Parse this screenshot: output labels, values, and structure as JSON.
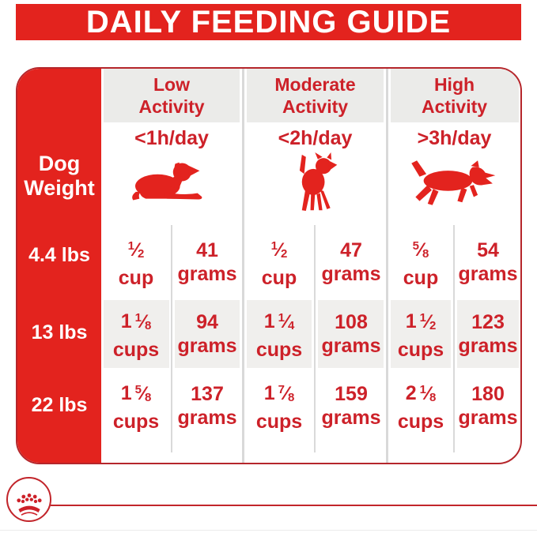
{
  "title": "DAILY FEEDING GUIDE",
  "colors": {
    "brand_red": "#e3231e",
    "text_red": "#cd2129",
    "border_red": "#b5262b",
    "line_red": "#c2252b",
    "header_gray": "#ebebe9",
    "row_gray": "#f0efed",
    "divider_gray": "#d9d9d9"
  },
  "table": {
    "corner_label_line1": "Dog",
    "corner_label_line2": "Weight",
    "columns": [
      {
        "label_line1": "Low",
        "label_line2": "Activity",
        "duration": "<1h/day",
        "icon": "dog-lying-icon"
      },
      {
        "label_line1": "Moderate",
        "label_line2": "Activity",
        "duration": "<2h/day",
        "icon": "dog-standing-icon"
      },
      {
        "label_line1": "High",
        "label_line2": "Activity",
        "duration": ">3h/day",
        "icon": "dog-running-icon"
      }
    ],
    "rows": [
      {
        "weight": "4.4 lbs",
        "cells": [
          {
            "whole": "",
            "num": "1",
            "den": "2",
            "unit": "cup",
            "grams": "41",
            "grams_unit": "grams"
          },
          {
            "whole": "",
            "num": "1",
            "den": "2",
            "unit": "cup",
            "grams": "47",
            "grams_unit": "grams"
          },
          {
            "whole": "",
            "num": "5",
            "den": "8",
            "unit": "cup",
            "grams": "54",
            "grams_unit": "grams"
          }
        ]
      },
      {
        "weight": "13 lbs",
        "cells": [
          {
            "whole": "1",
            "num": "1",
            "den": "8",
            "unit": "cups",
            "grams": "94",
            "grams_unit": "grams"
          },
          {
            "whole": "1",
            "num": "1",
            "den": "4",
            "unit": "cups",
            "grams": "108",
            "grams_unit": "grams"
          },
          {
            "whole": "1",
            "num": "1",
            "den": "2",
            "unit": "cups",
            "grams": "123",
            "grams_unit": "grams"
          }
        ]
      },
      {
        "weight": "22 lbs",
        "cells": [
          {
            "whole": "1",
            "num": "5",
            "den": "8",
            "unit": "cups",
            "grams": "137",
            "grams_unit": "grams"
          },
          {
            "whole": "1",
            "num": "7",
            "den": "8",
            "unit": "cups",
            "grams": "159",
            "grams_unit": "grams"
          },
          {
            "whole": "2",
            "num": "1",
            "den": "8",
            "unit": "cups",
            "grams": "180",
            "grams_unit": "grams"
          }
        ]
      }
    ]
  },
  "footer": {
    "logo_icon": "royal-canin-crown-icon"
  }
}
